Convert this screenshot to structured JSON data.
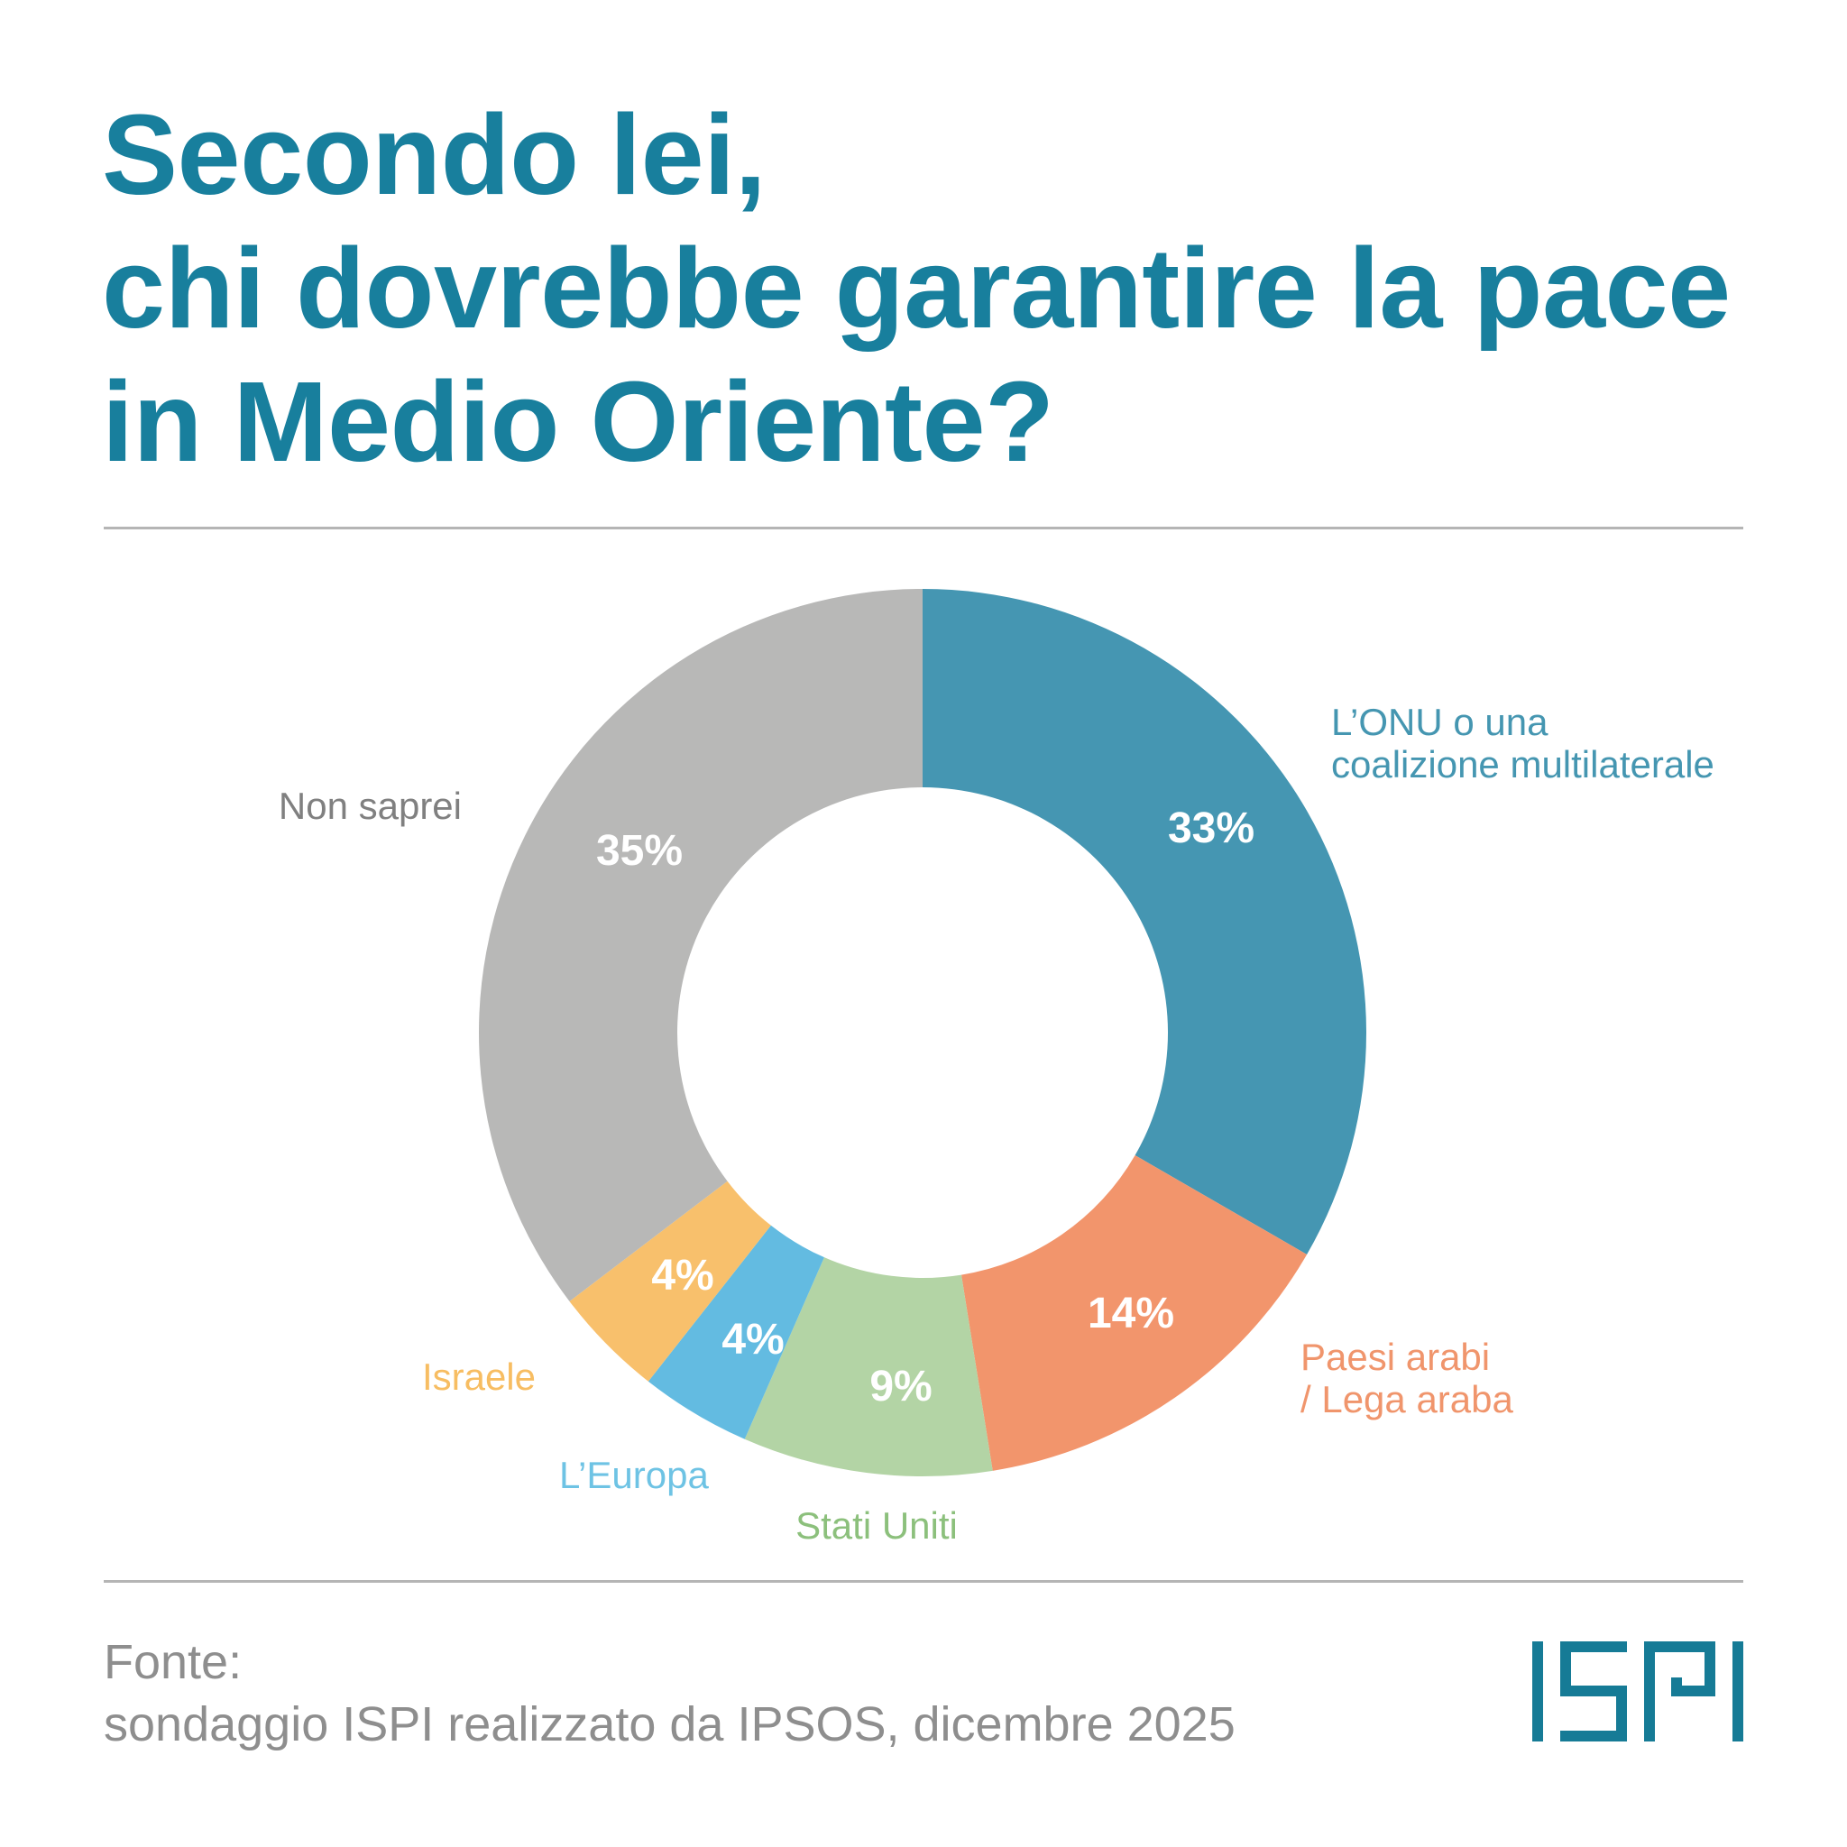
{
  "title": {
    "lines": [
      "Secondo lei,",
      "chi dovrebbe garantire la pace",
      "in Medio Oriente?"
    ]
  },
  "chart_data": {
    "type": "pie",
    "variant": "donut",
    "title": "Secondo lei, chi dovrebbe garantire la pace in Medio Oriente?",
    "unit": "%",
    "slices": [
      {
        "label": "L'ONU o una coalizione multilaterale",
        "label_lines": [
          "L’ONU o una",
          "coalizione multilaterale"
        ],
        "value": 33,
        "value_label": "33%",
        "color": "#4596b2"
      },
      {
        "label": "Paesi arabi / Lega araba",
        "label_lines": [
          "Paesi arabi",
          "/ Lega araba"
        ],
        "value": 14,
        "value_label": "14%",
        "color": "#f2956c"
      },
      {
        "label": "Stati Uniti",
        "label_lines": [
          "Stati Uniti"
        ],
        "value": 9,
        "value_label": "9%",
        "color": "#b3d4a5"
      },
      {
        "label": "L'Europa",
        "label_lines": [
          "L’Europa"
        ],
        "value": 4,
        "value_label": "4%",
        "color": "#63bbe1"
      },
      {
        "label": "Israele",
        "label_lines": [
          "Israele"
        ],
        "value": 4,
        "value_label": "4%",
        "color": "#f8c06c"
      },
      {
        "label": "Non saprei",
        "label_lines": [
          "Non saprei"
        ],
        "value": 35,
        "value_label": "35%",
        "color": "#b8b8b7"
      }
    ],
    "label_colors": [
      "#4596b1",
      "#f0956c",
      "#8cc07c",
      "#6ec3e4",
      "#f7bd62",
      "#808080"
    ]
  },
  "footer": {
    "source_label": "Fonte:",
    "source_text": "sondaggio ISPI realizzato da IPSOS, dicembre 2025"
  },
  "logo": {
    "text": "ISPI",
    "color": "#167b96"
  }
}
